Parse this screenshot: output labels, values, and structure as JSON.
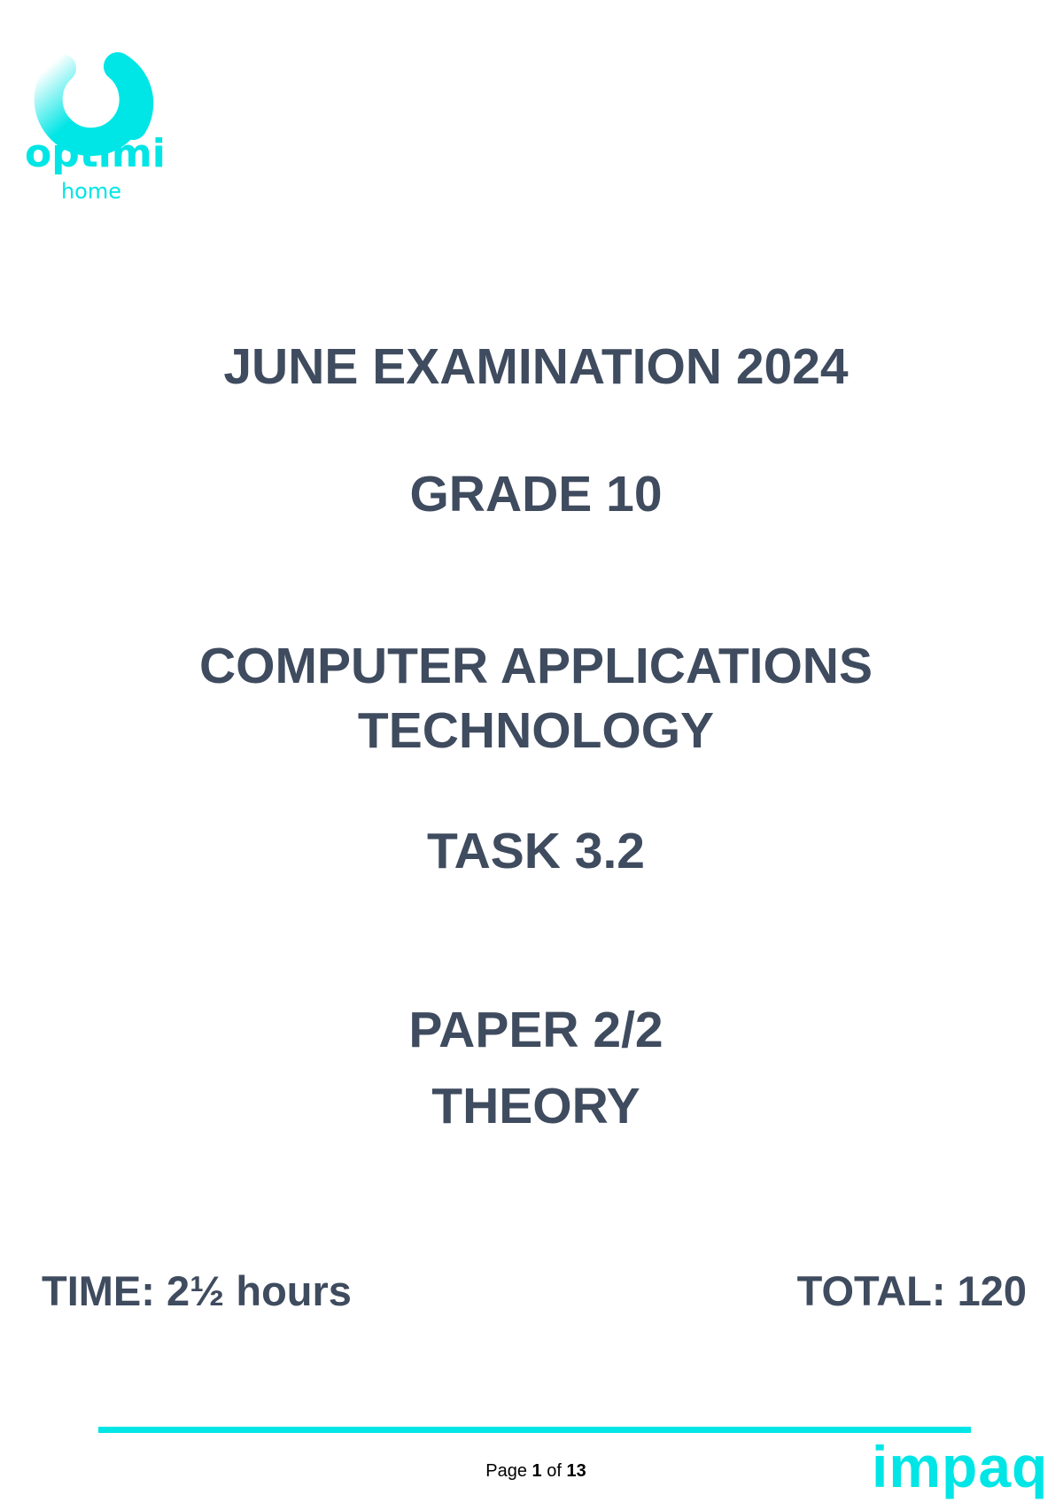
{
  "header": {
    "logo_text": "optimi",
    "logo_subtext": "home"
  },
  "cover": {
    "exam": "JUNE EXAMINATION 2024",
    "grade": "GRADE 10",
    "subject_line1": "COMPUTER APPLICATIONS",
    "subject_line2": "TECHNOLOGY",
    "task": "TASK 3.2",
    "paper": "PAPER 2/2",
    "paper_type": "THEORY",
    "time": "TIME: 2½ hours",
    "total": "TOTAL: 120"
  },
  "footer": {
    "page_label": "Page",
    "page": "1",
    "of_label": "of",
    "pages": "13",
    "brand": "impaq"
  },
  "colors": {
    "accent": "#00e5e5",
    "text": "#3f4b5e"
  }
}
